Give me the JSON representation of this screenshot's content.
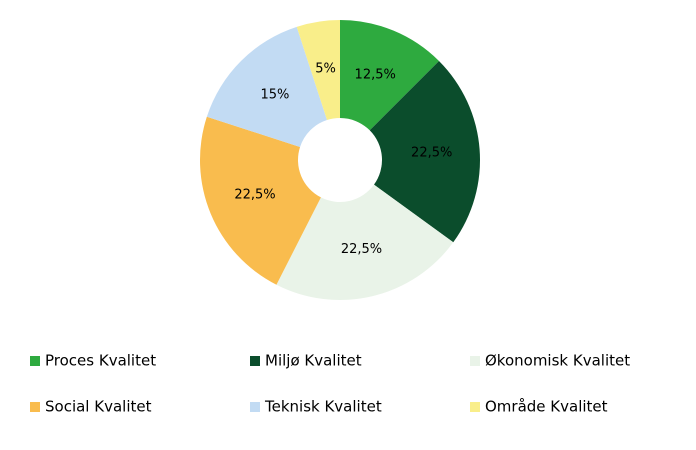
{
  "chart_data": {
    "type": "donut",
    "categories": [
      "Proces Kvalitet",
      "Miljø Kvalitet",
      "Økonomisk Kvalitet",
      "Social Kvalitet",
      "Teknisk Kvalitet",
      "Område Kvalitet"
    ],
    "values": [
      12.5,
      22.5,
      22.5,
      22.5,
      15,
      5
    ],
    "value_labels": [
      "12,5%",
      "22,5%",
      "22,5%",
      "22,5%",
      "15%",
      "5%"
    ],
    "colors": [
      "#2eaa3f",
      "#0b4d2c",
      "#e9f3e8",
      "#f9bc4e",
      "#c2dbf3",
      "#f9ee8a"
    ],
    "legend": "bottom"
  }
}
